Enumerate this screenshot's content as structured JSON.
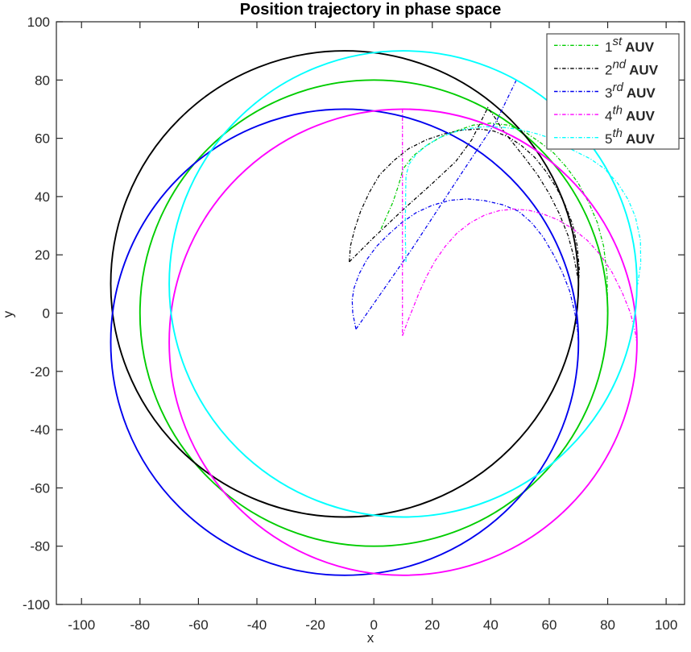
{
  "chart_data": {
    "type": "line",
    "title": "Position trajectory in phase space",
    "xlabel": "x",
    "ylabel": "y",
    "xlim": [
      -108.6,
      106.3
    ],
    "ylim": [
      -100,
      100
    ],
    "xticks": [
      -100,
      -80,
      -60,
      -40,
      -20,
      0,
      20,
      40,
      60,
      80,
      100
    ],
    "yticks": [
      -100,
      -80,
      -60,
      -40,
      -20,
      0,
      20,
      40,
      60,
      80,
      100
    ],
    "grid": false,
    "axis_color": "#262626",
    "line_style_orbit": "solid",
    "line_style_transient": "dash-dot",
    "legend": {
      "position": "top-right",
      "border_color": "#4d4d4d",
      "background": "#ffffff",
      "entries": [
        {
          "ordinal": "1",
          "suffix": "st",
          "label": "AUV",
          "color": "#00cc00"
        },
        {
          "ordinal": "2",
          "suffix": "nd",
          "label": "AUV",
          "color": "#000000"
        },
        {
          "ordinal": "3",
          "suffix": "rd",
          "label": "AUV",
          "color": "#0000ee"
        },
        {
          "ordinal": "4",
          "suffix": "th",
          "label": "AUV",
          "color": "#ff00ff"
        },
        {
          "ordinal": "5",
          "suffix": "th",
          "label": "AUV",
          "color": "#00ffff"
        }
      ]
    },
    "series": [
      {
        "name": "1st AUV",
        "color": "#00cc00",
        "orbit": {
          "cx": 0,
          "cy": 0,
          "r": 80
        },
        "transients": [
          [
            [
              2.5,
              29
            ],
            [
              4.5,
              33.5
            ],
            [
              6.5,
              38
            ],
            [
              8.5,
              44
            ],
            [
              10,
              49.5
            ],
            [
              13.5,
              54
            ],
            [
              18,
              57.5
            ],
            [
              23,
              60.5
            ],
            [
              28,
              62.5
            ],
            [
              34,
              64.5
            ],
            [
              40,
              65.2
            ],
            [
              46,
              64.5
            ],
            [
              52,
              62
            ],
            [
              57,
              58.5
            ],
            [
              61.5,
              55
            ],
            [
              66,
              50
            ],
            [
              70,
              44.5
            ],
            [
              73.5,
              38
            ],
            [
              76.5,
              31
            ],
            [
              78.6,
              23
            ],
            [
              79.8,
              13
            ],
            [
              80,
              0
            ]
          ]
        ]
      },
      {
        "name": "2nd AUV",
        "color": "#000000",
        "orbit": {
          "cx": -10,
          "cy": 10,
          "r": 80
        },
        "transients": [
          [
            [
              -8.4,
              17.6
            ],
            [
              -8,
              23
            ],
            [
              -6.5,
              29
            ],
            [
              -4.5,
              35
            ],
            [
              -1.5,
              41.5
            ],
            [
              2,
              47.5
            ],
            [
              7,
              52.5
            ],
            [
              12,
              56.5
            ],
            [
              18,
              59.5
            ],
            [
              24,
              61.5
            ],
            [
              30,
              62.8
            ],
            [
              36,
              63.2
            ],
            [
              41,
              62.5
            ],
            [
              46,
              60.5
            ],
            [
              50.5,
              57.5
            ],
            [
              55,
              53.5
            ],
            [
              59,
              48.5
            ],
            [
              62.5,
              43
            ],
            [
              65.5,
              37
            ],
            [
              68,
              30.5
            ],
            [
              69.6,
              23
            ],
            [
              70.3,
              15
            ],
            [
              70,
              10
            ]
          ],
          [
            [
              -8.4,
              17.6
            ],
            [
              0,
              26
            ],
            [
              10,
              35.5
            ],
            [
              20,
              44.5
            ],
            [
              28,
              52
            ],
            [
              33.5,
              59.5
            ],
            [
              39,
              70.5
            ],
            [
              41.5,
              67
            ],
            [
              44,
              63
            ],
            [
              47.5,
              58.5
            ],
            [
              51.5,
              53.5
            ],
            [
              56,
              47.5
            ],
            [
              60,
              41
            ],
            [
              63.5,
              34
            ],
            [
              66.5,
              26.5
            ],
            [
              68.5,
              19
            ],
            [
              69.8,
              12
            ]
          ]
        ]
      },
      {
        "name": "3rd AUV",
        "color": "#0000ee",
        "orbit": {
          "cx": -10,
          "cy": -10,
          "r": 80
        },
        "transients": [
          [
            [
              -6.1,
              -5.5
            ],
            [
              -7.2,
              0
            ],
            [
              -7.4,
              4.5
            ],
            [
              -6.8,
              8.5
            ],
            [
              -5,
              13.5
            ],
            [
              -2.3,
              18.5
            ],
            [
              1,
              23
            ],
            [
              5,
              27
            ],
            [
              9.5,
              31
            ],
            [
              14.5,
              34.5
            ],
            [
              20,
              37
            ],
            [
              26,
              38.7
            ],
            [
              32,
              39.2
            ],
            [
              38,
              38.6
            ],
            [
              44,
              37.2
            ],
            [
              49.5,
              35
            ],
            [
              54,
              31
            ],
            [
              58,
              26
            ],
            [
              61.5,
              20
            ],
            [
              64.5,
              14
            ],
            [
              67,
              7.5
            ],
            [
              68.8,
              0
            ],
            [
              69.7,
              -6
            ],
            [
              70,
              -10
            ]
          ],
          [
            [
              -6.1,
              -5.5
            ],
            [
              13,
              22
            ],
            [
              30,
              48
            ],
            [
              42,
              66
            ],
            [
              49,
              80.5
            ]
          ]
        ]
      },
      {
        "name": "4th AUV",
        "color": "#ff00ff",
        "orbit": {
          "cx": 10,
          "cy": -10,
          "r": 80
        },
        "transients": [
          [
            [
              9.8,
              70
            ],
            [
              9.8,
              -7.8
            ]
          ],
          [
            [
              9.8,
              -7.8
            ],
            [
              11.5,
              -3
            ],
            [
              13.5,
              2
            ],
            [
              15.5,
              7
            ],
            [
              18,
              12.5
            ],
            [
              21,
              18
            ],
            [
              24.5,
              23
            ],
            [
              28.5,
              27.5
            ],
            [
              33,
              31
            ],
            [
              38,
              33.7
            ],
            [
              43,
              35.2
            ],
            [
              48,
              35.7
            ],
            [
              53,
              35.3
            ],
            [
              58,
              34
            ],
            [
              63,
              32
            ],
            [
              68,
              29
            ],
            [
              73,
              25
            ],
            [
              77.5,
              20
            ],
            [
              81.5,
              14
            ],
            [
              85,
              7
            ],
            [
              87.8,
              0
            ],
            [
              89.5,
              -7
            ],
            [
              90,
              -10
            ]
          ]
        ]
      },
      {
        "name": "5th AUV",
        "color": "#00ffff",
        "orbit": {
          "cx": 10,
          "cy": 10,
          "r": 80
        },
        "transients": [
          [
            [
              11,
              17.6
            ],
            [
              10.8,
              25
            ],
            [
              10.8,
              33
            ],
            [
              10.9,
              41
            ],
            [
              11,
              47
            ],
            [
              12,
              51
            ],
            [
              14.5,
              54.5
            ],
            [
              18,
              57.5
            ],
            [
              22,
              60
            ],
            [
              27,
              62
            ],
            [
              32,
              63.3
            ],
            [
              38,
              64
            ],
            [
              44,
              63.8
            ],
            [
              50,
              63
            ],
            [
              56,
              61.5
            ],
            [
              62,
              59.5
            ],
            [
              68,
              56
            ],
            [
              74,
              53
            ],
            [
              79,
              49.5
            ],
            [
              83.5,
              44.5
            ],
            [
              87,
              39
            ],
            [
              89.5,
              33
            ],
            [
              91.2,
              25
            ],
            [
              91.3,
              17
            ],
            [
              90.3,
              10
            ],
            [
              90,
              10
            ]
          ]
        ]
      }
    ]
  }
}
